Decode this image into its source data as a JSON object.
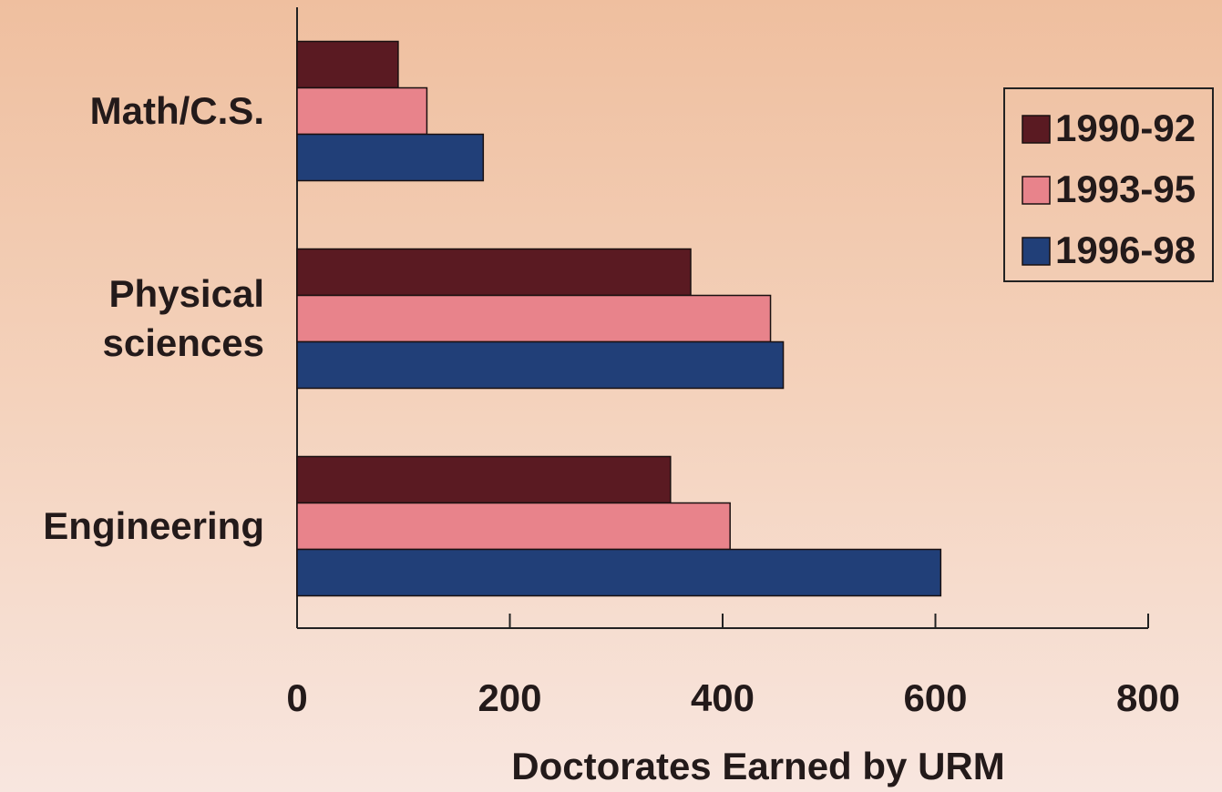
{
  "chart_data": {
    "type": "bar",
    "orientation": "horizontal",
    "xlabel": "Doctorates Earned by URM",
    "categories": [
      "Math/C.S.",
      "Physical sciences",
      "Engineering"
    ],
    "series": [
      {
        "name": "1990-92",
        "color": "#5a1a22",
        "values": [
          95,
          370,
          351
        ]
      },
      {
        "name": "1993-95",
        "color": "#e8838b",
        "values": [
          122,
          445,
          407
        ]
      },
      {
        "name": "1996-98",
        "color": "#213f78",
        "values": [
          175,
          457,
          605
        ]
      }
    ],
    "xlim": [
      0,
      800
    ],
    "xticks": [
      0,
      200,
      400,
      600,
      800
    ],
    "legend": "upper right"
  }
}
